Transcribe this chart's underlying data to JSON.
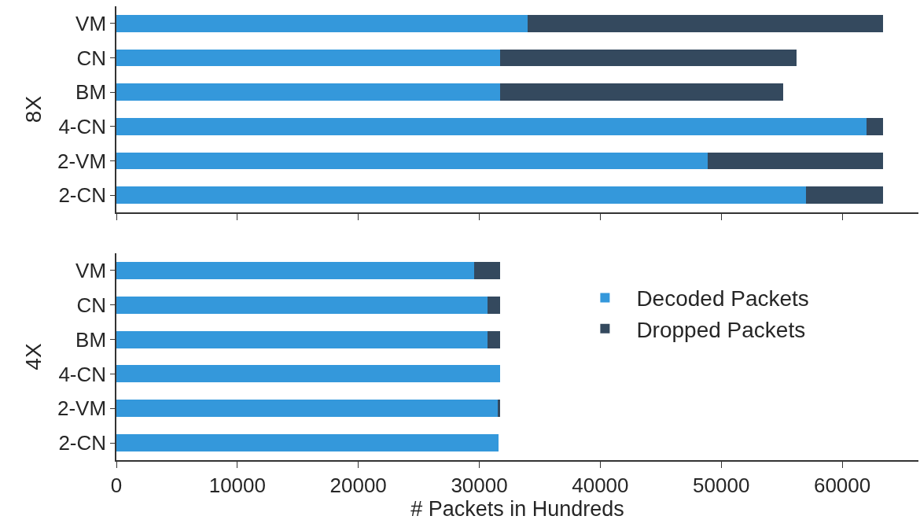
{
  "chart_data": [
    {
      "type": "bar",
      "orientation": "horizontal",
      "stacked": true,
      "ylabel": "8X",
      "categories": [
        "VM",
        "CN",
        "BM",
        "4-CN",
        "2-VM",
        "2-CN"
      ],
      "series": [
        {
          "color": "#3498db",
          "values": [
            34000,
            31700,
            31700,
            62000,
            48900,
            57000
          ]
        },
        {
          "color": "#34495e",
          "values": [
            29400,
            24500,
            23400,
            1400,
            14500,
            6400
          ]
        }
      ],
      "xlim": [
        0,
        66300
      ],
      "xticks": [
        0,
        10000,
        20000,
        30000,
        40000,
        50000,
        60000
      ],
      "tick_labels": "y",
      "grid": false,
      "legend": false
    },
    {
      "type": "bar",
      "orientation": "horizontal",
      "stacked": true,
      "ylabel": "4X",
      "xlabel": "# Packets in Hundreds",
      "categories": [
        "VM",
        "CN",
        "BM",
        "4-CN",
        "2-VM",
        "2-CN"
      ],
      "series": [
        {
          "name": "Decoded Packets",
          "color": "#3498db",
          "values": [
            29600,
            30700,
            30700,
            31700,
            31500,
            31600
          ]
        },
        {
          "name": "Dropped Packets",
          "color": "#34495e",
          "values": [
            2100,
            1000,
            1000,
            0,
            200,
            0
          ]
        }
      ],
      "xlim": [
        0,
        66300
      ],
      "xticks": [
        0,
        10000,
        20000,
        30000,
        40000,
        50000,
        60000
      ],
      "grid": false,
      "legend": "right"
    }
  ]
}
